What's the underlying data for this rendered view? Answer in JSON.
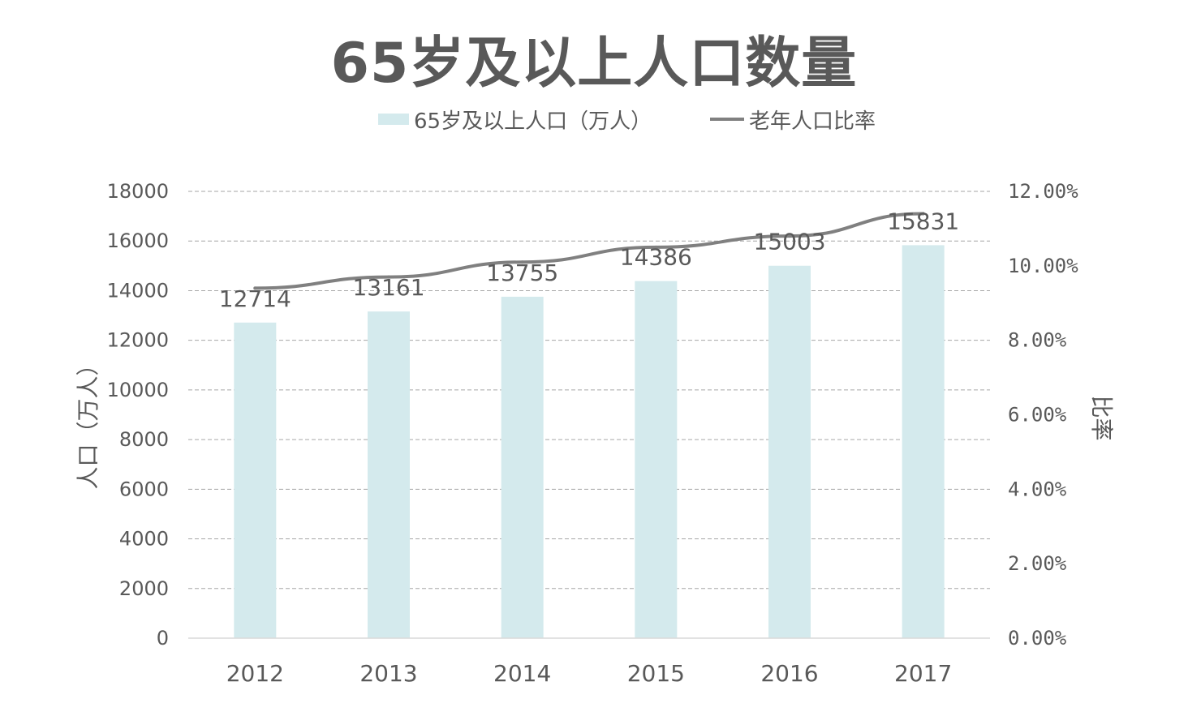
{
  "chart_data": {
    "type": "bar",
    "title": "65岁及以上人口数量",
    "categories": [
      "2012",
      "2013",
      "2014",
      "2015",
      "2016",
      "2017"
    ],
    "series": [
      {
        "name": "65岁及以上人口（万人）",
        "type": "bar",
        "axis": "left",
        "color": "#d4eaed",
        "values": [
          12714,
          13161,
          13755,
          14386,
          15003,
          15831
        ],
        "data_labels": [
          "12714",
          "13161",
          "13755",
          "14386",
          "15003",
          "15831"
        ]
      },
      {
        "name": "老年人口比率",
        "type": "line",
        "axis": "right",
        "color": "#808080",
        "values": [
          9.4,
          9.7,
          10.1,
          10.5,
          10.8,
          11.4
        ]
      }
    ],
    "ylabel": "人口（万人）",
    "ylabel_right": "比率",
    "ylim": [
      0,
      18000
    ],
    "ylim_right": [
      0,
      12
    ],
    "yticks": [
      "0",
      "2000",
      "4000",
      "6000",
      "8000",
      "10000",
      "12000",
      "14000",
      "16000",
      "18000"
    ],
    "yticks_right": [
      "0.00%",
      "2.00%",
      "4.00%",
      "6.00%",
      "8.00%",
      "10.00%",
      "12.00%"
    ],
    "grid": true,
    "grid_style": "dashed",
    "legend_position": "top-center"
  }
}
